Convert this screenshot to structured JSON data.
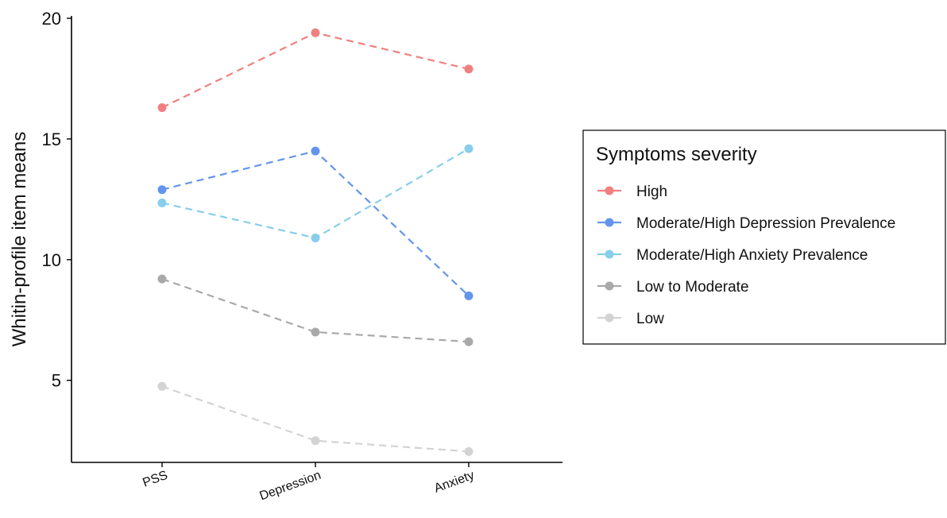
{
  "chart_data": {
    "type": "line",
    "categories": [
      "PSS",
      "Depression",
      "Anxiety"
    ],
    "ylabel": "Whitin-profile item means",
    "xlabel": "",
    "yticks": [
      5,
      10,
      15,
      20
    ],
    "ylim": [
      1.6,
      20.1
    ],
    "legend": {
      "title": "Symptoms severity",
      "placement": "right"
    },
    "series": [
      {
        "name": "High",
        "color": "#F08080",
        "values": [
          16.3,
          19.4,
          17.9
        ]
      },
      {
        "name": "Moderate/High Depression Prevalence",
        "color": "#6495ED",
        "values": [
          12.9,
          14.5,
          8.5
        ]
      },
      {
        "name": "Moderate/High Anxiety Prevalence",
        "color": "#87CEEB",
        "values": [
          12.35,
          10.9,
          14.6
        ]
      },
      {
        "name": "Low to Moderate",
        "color": "#A9A9A9",
        "values": [
          9.2,
          7.0,
          6.6
        ]
      },
      {
        "name": "Low",
        "color": "#D3D3D3",
        "values": [
          4.75,
          2.5,
          2.05
        ]
      }
    ]
  }
}
